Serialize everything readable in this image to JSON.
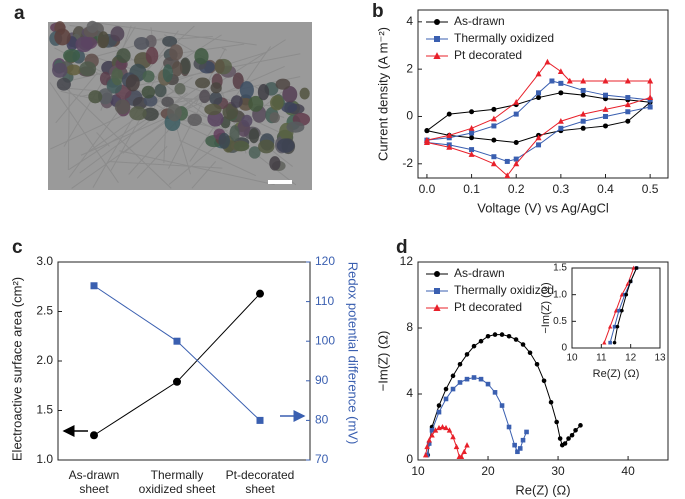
{
  "chart_data": [
    {
      "type": "image",
      "label": "a"
    },
    {
      "type": "line",
      "label": "b",
      "xlabel": "Voltage (V) vs Ag/AgCl",
      "ylabel": "Current density (A m⁻²)",
      "xlim": [
        -0.02,
        0.54
      ],
      "ylim": [
        -2.6,
        4.5
      ],
      "xticks": [
        {
          "value": 0,
          "label": "0.0"
        },
        0.1,
        0.2,
        0.3,
        0.4,
        0.5
      ],
      "yticks": [
        -2,
        0,
        2,
        4
      ],
      "legend": "upper left",
      "series": [
        {
          "name": "As-drawn",
          "color": "#000000",
          "marker": "circle",
          "x": [
            0,
            0.05,
            0.1,
            0.15,
            0.2,
            0.25,
            0.3,
            0.35,
            0.4,
            0.45,
            0.5,
            0.45,
            0.4,
            0.35,
            0.3,
            0.25,
            0.2,
            0.15,
            0.1,
            0.05,
            0
          ],
          "values": [
            -0.6,
            0.1,
            0.2,
            0.3,
            0.5,
            0.8,
            1.0,
            0.9,
            0.75,
            0.7,
            0.6,
            -0.2,
            -0.4,
            -0.5,
            -0.6,
            -0.8,
            -1.1,
            -1.0,
            -0.9,
            -0.8,
            -0.6
          ]
        },
        {
          "name": "Thermally oxidized",
          "color": "#3a5fb0",
          "marker": "square",
          "x": [
            0,
            0.05,
            0.1,
            0.15,
            0.2,
            0.25,
            0.28,
            0.3,
            0.35,
            0.4,
            0.45,
            0.5,
            0.5,
            0.45,
            0.4,
            0.35,
            0.3,
            0.25,
            0.2,
            0.18,
            0.15,
            0.1,
            0.05,
            0
          ],
          "values": [
            -1.0,
            -0.9,
            -0.7,
            -0.4,
            0.1,
            1.0,
            1.5,
            1.4,
            1.1,
            0.9,
            0.8,
            0.7,
            0.4,
            0.2,
            0.0,
            -0.2,
            -0.5,
            -1.2,
            -1.8,
            -1.9,
            -1.7,
            -1.4,
            -1.2,
            -1.1
          ]
        },
        {
          "name": "Pt decorated",
          "color": "#e8202a",
          "marker": "triangle",
          "x": [
            0,
            0.05,
            0.1,
            0.15,
            0.2,
            0.25,
            0.27,
            0.3,
            0.32,
            0.35,
            0.4,
            0.45,
            0.5,
            0.5,
            0.45,
            0.4,
            0.35,
            0.3,
            0.25,
            0.2,
            0.18,
            0.15,
            0.1,
            0.05,
            0
          ],
          "values": [
            -1.0,
            -0.8,
            -0.5,
            -0.1,
            0.6,
            1.8,
            2.3,
            1.9,
            1.5,
            1.5,
            1.5,
            1.5,
            1.5,
            0.8,
            0.5,
            0.3,
            0.1,
            -0.2,
            -0.9,
            -2.0,
            -2.5,
            -2.0,
            -1.6,
            -1.3,
            -1.1
          ]
        }
      ]
    },
    {
      "type": "dual_axis_line",
      "label": "c",
      "ylabel": "Electroactive surface area (cm²)",
      "y2label": "Redox potential difference (mV)",
      "categories": [
        [
          "As-drawn",
          "sheet"
        ],
        [
          "Thermally",
          "oxidized sheet"
        ],
        [
          "Pt-decorated",
          "sheet"
        ]
      ],
      "ylim": [
        1.0,
        3.0
      ],
      "yticks": [
        {
          "value": 1,
          "label": "1.0"
        },
        1.5,
        {
          "value": 2,
          "label": "2.0"
        },
        2.5,
        {
          "value": 3,
          "label": "3.0"
        }
      ],
      "y2lim": [
        70,
        120
      ],
      "y2ticks": [
        70,
        80,
        90,
        100,
        110,
        120
      ],
      "series": [
        {
          "color": "#000000",
          "marker": "circle",
          "axis": "y",
          "values": [
            1.25,
            1.79,
            2.68
          ]
        },
        {
          "color": "#3a5fb0",
          "marker": "square",
          "axis": "y2",
          "values": [
            114,
            100,
            80
          ]
        }
      ]
    },
    {
      "type": "line",
      "label": "d",
      "xlabel": "Re(Z) (Ω)",
      "ylabel": "−Im(Z) (Ω)",
      "xlim": [
        10,
        45.7
      ],
      "ylim": [
        0,
        12
      ],
      "xticks": [
        10,
        20,
        30,
        40
      ],
      "yticks": [
        0,
        4,
        8,
        12
      ],
      "legend": "upper left",
      "series": [
        {
          "name": "As-drawn",
          "color": "#000000",
          "marker": "circle",
          "x": [
            11.4,
            11.6,
            12,
            13,
            14,
            15,
            16,
            17,
            18,
            19,
            20,
            21,
            22,
            23,
            24,
            25,
            26,
            27,
            28,
            29,
            29.8,
            30.3,
            30.6,
            31,
            31.5,
            32,
            32.5,
            33.2
          ],
          "values": [
            0.3,
            1,
            2,
            3.3,
            4.3,
            5.1,
            5.8,
            6.4,
            6.9,
            7.2,
            7.5,
            7.6,
            7.6,
            7.5,
            7.3,
            7.0,
            6.5,
            5.8,
            4.8,
            3.5,
            2.3,
            1.3,
            0.9,
            1.0,
            1.3,
            1.5,
            1.8,
            2.1
          ]
        },
        {
          "name": "Thermally oxidized",
          "color": "#3a5fb0",
          "marker": "square",
          "x": [
            11.3,
            11.6,
            12,
            13,
            14,
            15,
            16,
            17,
            18,
            19,
            20,
            21,
            22,
            23,
            23.8,
            24.2,
            24.6,
            25,
            25.5
          ],
          "values": [
            0.3,
            1,
            1.8,
            2.9,
            3.7,
            4.3,
            4.7,
            4.9,
            5.0,
            4.9,
            4.6,
            4.1,
            3.3,
            2.0,
            0.9,
            0.5,
            0.7,
            1.2,
            1.7
          ]
        },
        {
          "name": "Pt decorated",
          "color": "#e8202a",
          "marker": "triangle",
          "x": [
            11.1,
            11.3,
            11.6,
            12,
            12.5,
            13,
            13.5,
            14,
            14.5,
            15,
            15.5,
            15.9,
            16.2,
            16.6,
            17
          ],
          "values": [
            0.3,
            0.8,
            1.2,
            1.5,
            1.8,
            1.95,
            2.0,
            1.95,
            1.8,
            1.4,
            0.8,
            0.2,
            0.2,
            0.5,
            0.9
          ]
        }
      ]
    },
    {
      "type": "line",
      "xlabel": "Re(Z) (Ω)",
      "ylabel": "−Im(Z) (Ω)",
      "xlim": [
        10,
        13
      ],
      "ylim": [
        0,
        1.5
      ],
      "xticks": [
        10,
        11,
        12,
        13
      ],
      "yticks": [
        0,
        0.5,
        {
          "value": 1,
          "label": "1.0"
        },
        1.5
      ],
      "series": [
        {
          "color": "#e8202a",
          "marker": "triangle",
          "x": [
            11.1,
            11.3,
            11.5,
            11.7,
            11.9,
            12.1
          ],
          "values": [
            0.1,
            0.4,
            0.7,
            1.0,
            1.2,
            1.5
          ]
        },
        {
          "color": "#3a5fb0",
          "marker": "square",
          "x": [
            11.3,
            11.45,
            11.6,
            11.8,
            12.0,
            12.2
          ],
          "values": [
            0.1,
            0.4,
            0.7,
            1.0,
            1.25,
            1.5
          ]
        },
        {
          "color": "#000000",
          "marker": "circle",
          "x": [
            11.45,
            11.55,
            11.7,
            11.85,
            12.0,
            12.2
          ],
          "values": [
            0.1,
            0.4,
            0.7,
            1.0,
            1.25,
            1.5
          ]
        }
      ]
    }
  ]
}
